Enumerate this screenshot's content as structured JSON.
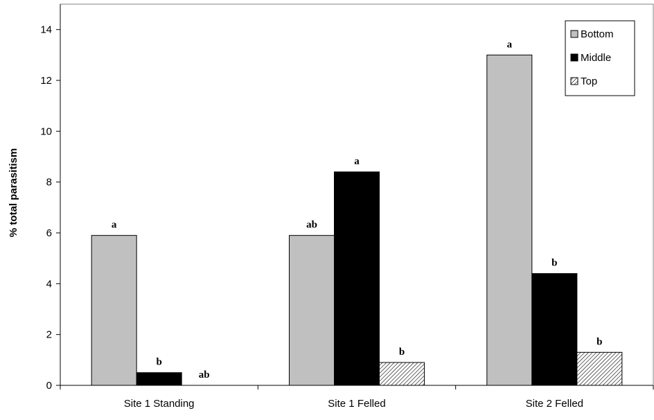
{
  "chart_data": {
    "type": "bar",
    "title": "",
    "xlabel": "",
    "ylabel": "% total parasitism",
    "ylim": [
      0,
      15
    ],
    "yticks": [
      0,
      2,
      4,
      6,
      8,
      10,
      12,
      14
    ],
    "categories": [
      "Site 1 Standing",
      "Site 1 Felled",
      "Site 2 Felled"
    ],
    "series": [
      {
        "name": "Bottom",
        "color": "#c0c0c0",
        "pattern": "solid",
        "values": [
          5.9,
          5.9,
          13.0
        ],
        "labels": [
          "a",
          "ab",
          "a"
        ]
      },
      {
        "name": "Middle",
        "color": "#000000",
        "pattern": "solid",
        "values": [
          0.5,
          8.4,
          4.4
        ],
        "labels": [
          "b",
          "a",
          "b"
        ]
      },
      {
        "name": "Top",
        "color": "#ffffff",
        "pattern": "hatch",
        "values": [
          0.0,
          0.9,
          1.3
        ],
        "labels": [
          "ab",
          "b",
          "b"
        ]
      }
    ],
    "legend_position": "top-right",
    "grid": false
  }
}
